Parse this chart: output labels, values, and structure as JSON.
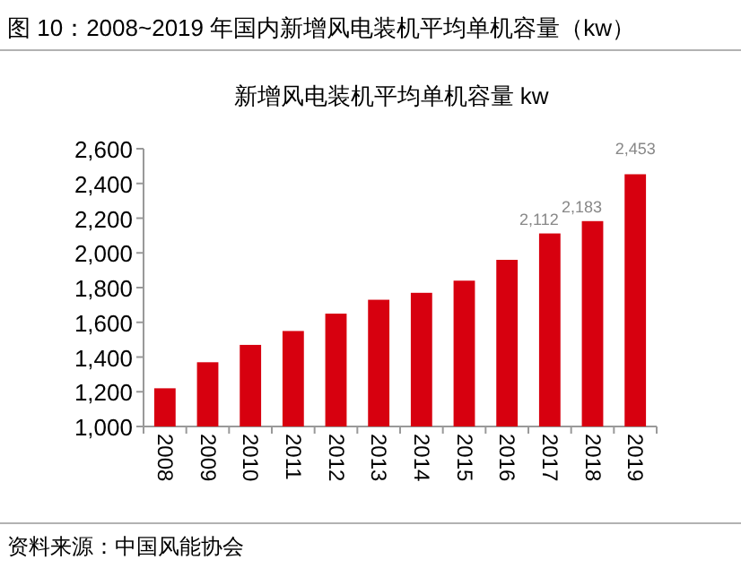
{
  "chart_data": {
    "type": "bar",
    "title": "图 10：2008~2019 年国内新增风电装机平均单机容量（kw）",
    "subtitle": "新增风电装机平均单机容量 kw",
    "annotations": [
      "资料来源：中国风能协会"
    ],
    "categories": [
      "2008",
      "2009",
      "2010",
      "2011",
      "2012",
      "2013",
      "2014",
      "2015",
      "2016",
      "2017",
      "2018",
      "2019"
    ],
    "values": [
      1220,
      1370,
      1470,
      1550,
      1650,
      1730,
      1770,
      1840,
      1960,
      2112,
      2183,
      2453
    ],
    "value_labels": [
      null,
      null,
      null,
      null,
      null,
      null,
      null,
      null,
      null,
      "2,112",
      "2,183",
      "2,453"
    ],
    "color": "#d7000f",
    "ylim": [
      1000,
      2600
    ],
    "yticks": [
      {
        "value": 1000,
        "label": "1,000"
      },
      {
        "value": 1200,
        "label": "1,200"
      },
      {
        "value": 1400,
        "label": "1,400"
      },
      {
        "value": 1600,
        "label": "1,600"
      },
      {
        "value": 1800,
        "label": "1,800"
      },
      {
        "value": 2000,
        "label": "2,000"
      },
      {
        "value": 2200,
        "label": "2,200"
      },
      {
        "value": 2400,
        "label": "2,400"
      },
      {
        "value": 2600,
        "label": "2,600"
      }
    ]
  }
}
